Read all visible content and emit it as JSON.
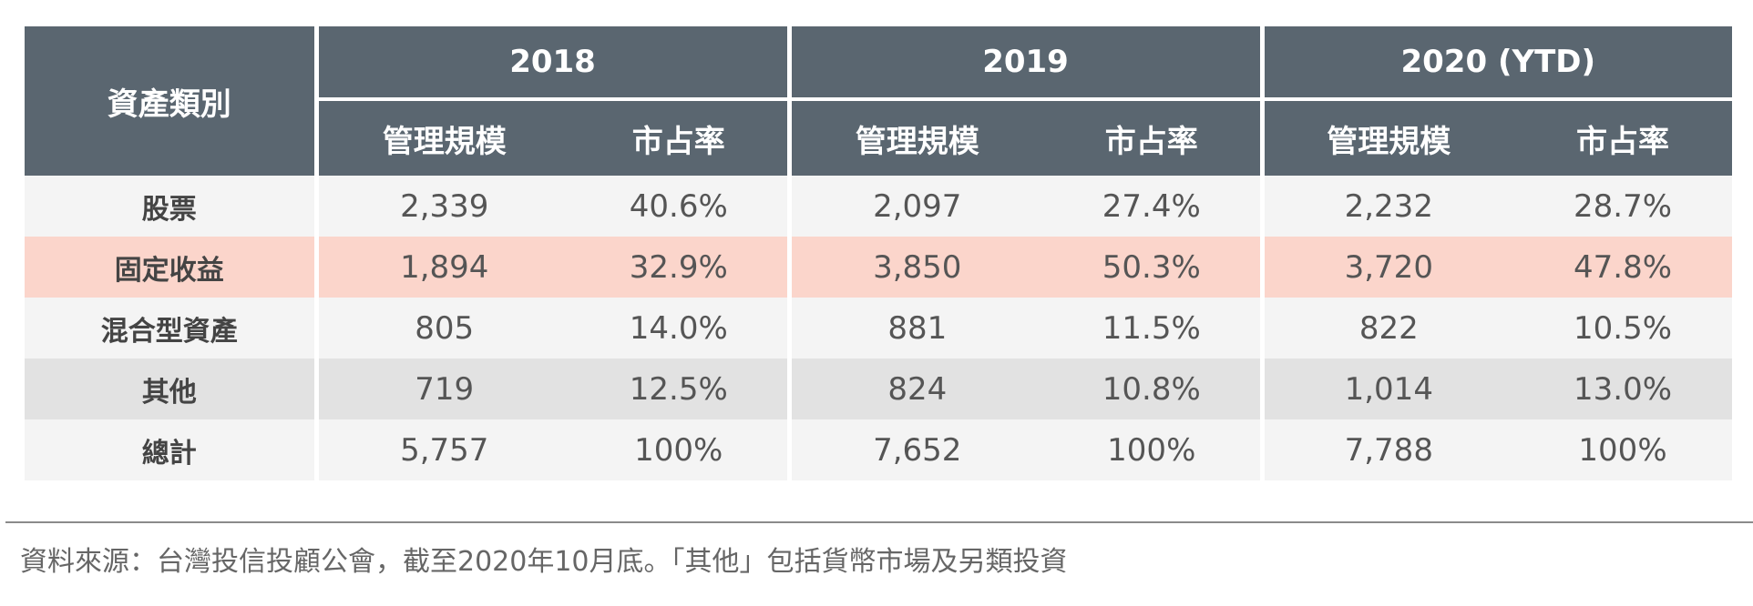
{
  "table": {
    "category_header": "資產類別",
    "years": [
      "2018",
      "2019",
      "2020 (YTD)"
    ],
    "sub_headers": {
      "aum": "管理規模",
      "share": "市占率"
    },
    "rows": [
      {
        "category": "股票",
        "values": [
          "2,339",
          "40.6%",
          "2,097",
          "27.4%",
          "2,232",
          "28.7%"
        ]
      },
      {
        "category": "固定收益",
        "values": [
          "1,894",
          "32.9%",
          "3,850",
          "50.3%",
          "3,720",
          "47.8%"
        ]
      },
      {
        "category": "混合型資產",
        "values": [
          "805",
          "14.0%",
          "881",
          "11.5%",
          "822",
          "10.5%"
        ]
      },
      {
        "category": "其他",
        "values": [
          "719",
          "12.5%",
          "824",
          "10.8%",
          "1,014",
          "13.0%"
        ]
      },
      {
        "category": "總計",
        "values": [
          "5,757",
          "100%",
          "7,652",
          "100%",
          "7,788",
          "100%"
        ]
      }
    ]
  },
  "colors": {
    "header_bg": "#5a6670",
    "row_light": "#f4f4f4",
    "row_pink": "#fbd5cb",
    "row_grey": "#e2e2e2"
  },
  "source_note": "資料來源：台灣投信投顧公會，截至2020年10月底。「其他」包括貨幣市場及另類投資"
}
